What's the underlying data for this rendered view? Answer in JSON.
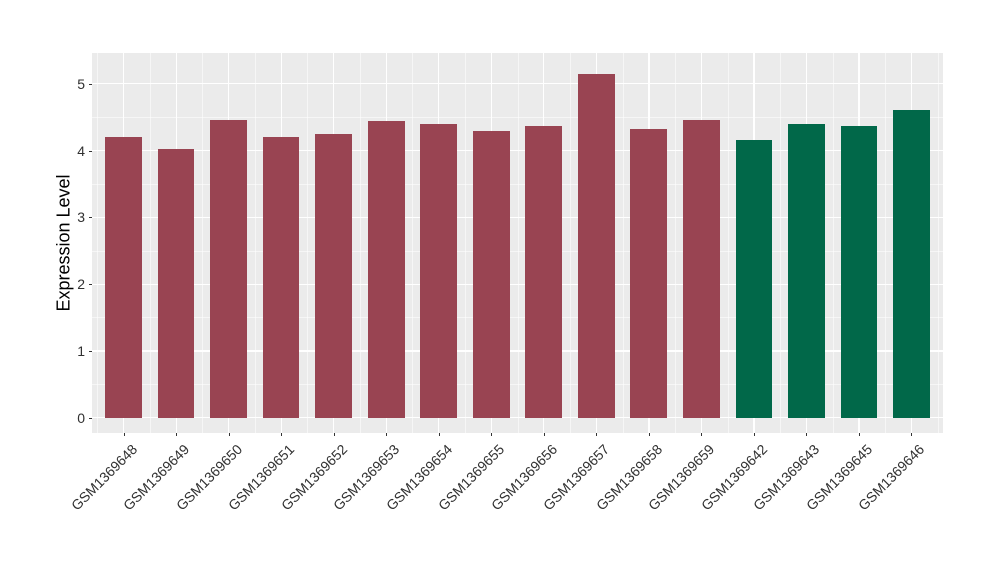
{
  "figure": {
    "background": "#FFFFFF"
  },
  "chart_data": {
    "type": "bar",
    "title": "",
    "xlabel": "",
    "ylabel": "Expression Level",
    "categories": [
      "GSM1369648",
      "GSM1369649",
      "GSM1369650",
      "GSM1369651",
      "GSM1369652",
      "GSM1369653",
      "GSM1369654",
      "GSM1369655",
      "GSM1369656",
      "GSM1369657",
      "GSM1369658",
      "GSM1369659",
      "GSM1369642",
      "GSM1369643",
      "GSM1369645",
      "GSM1369646"
    ],
    "values": [
      4.2,
      4.02,
      4.46,
      4.2,
      4.24,
      4.44,
      4.4,
      4.29,
      4.37,
      5.15,
      4.32,
      4.46,
      4.16,
      4.39,
      4.37,
      4.6
    ],
    "bar_groups": [
      "group1",
      "group1",
      "group1",
      "group1",
      "group1",
      "group1",
      "group1",
      "group1",
      "group1",
      "group1",
      "group1",
      "group1",
      "group2",
      "group2",
      "group2",
      "group2"
    ],
    "group_colors": {
      "group1": "#994452",
      "group2": "#016849"
    },
    "yticks": [
      0,
      1,
      2,
      3,
      4,
      5
    ],
    "ylim": [
      -0.23,
      5.46
    ],
    "grid": {
      "major": true,
      "minor": true,
      "color": "#FFFFFF"
    },
    "panel_background": "#EBEBEB",
    "tick_color": "#333333",
    "tick_label_color": "#303030",
    "axis_title_color": "#000000",
    "legend": "none",
    "bar_width_fraction": 0.7,
    "x_label_angle_deg": 45
  }
}
